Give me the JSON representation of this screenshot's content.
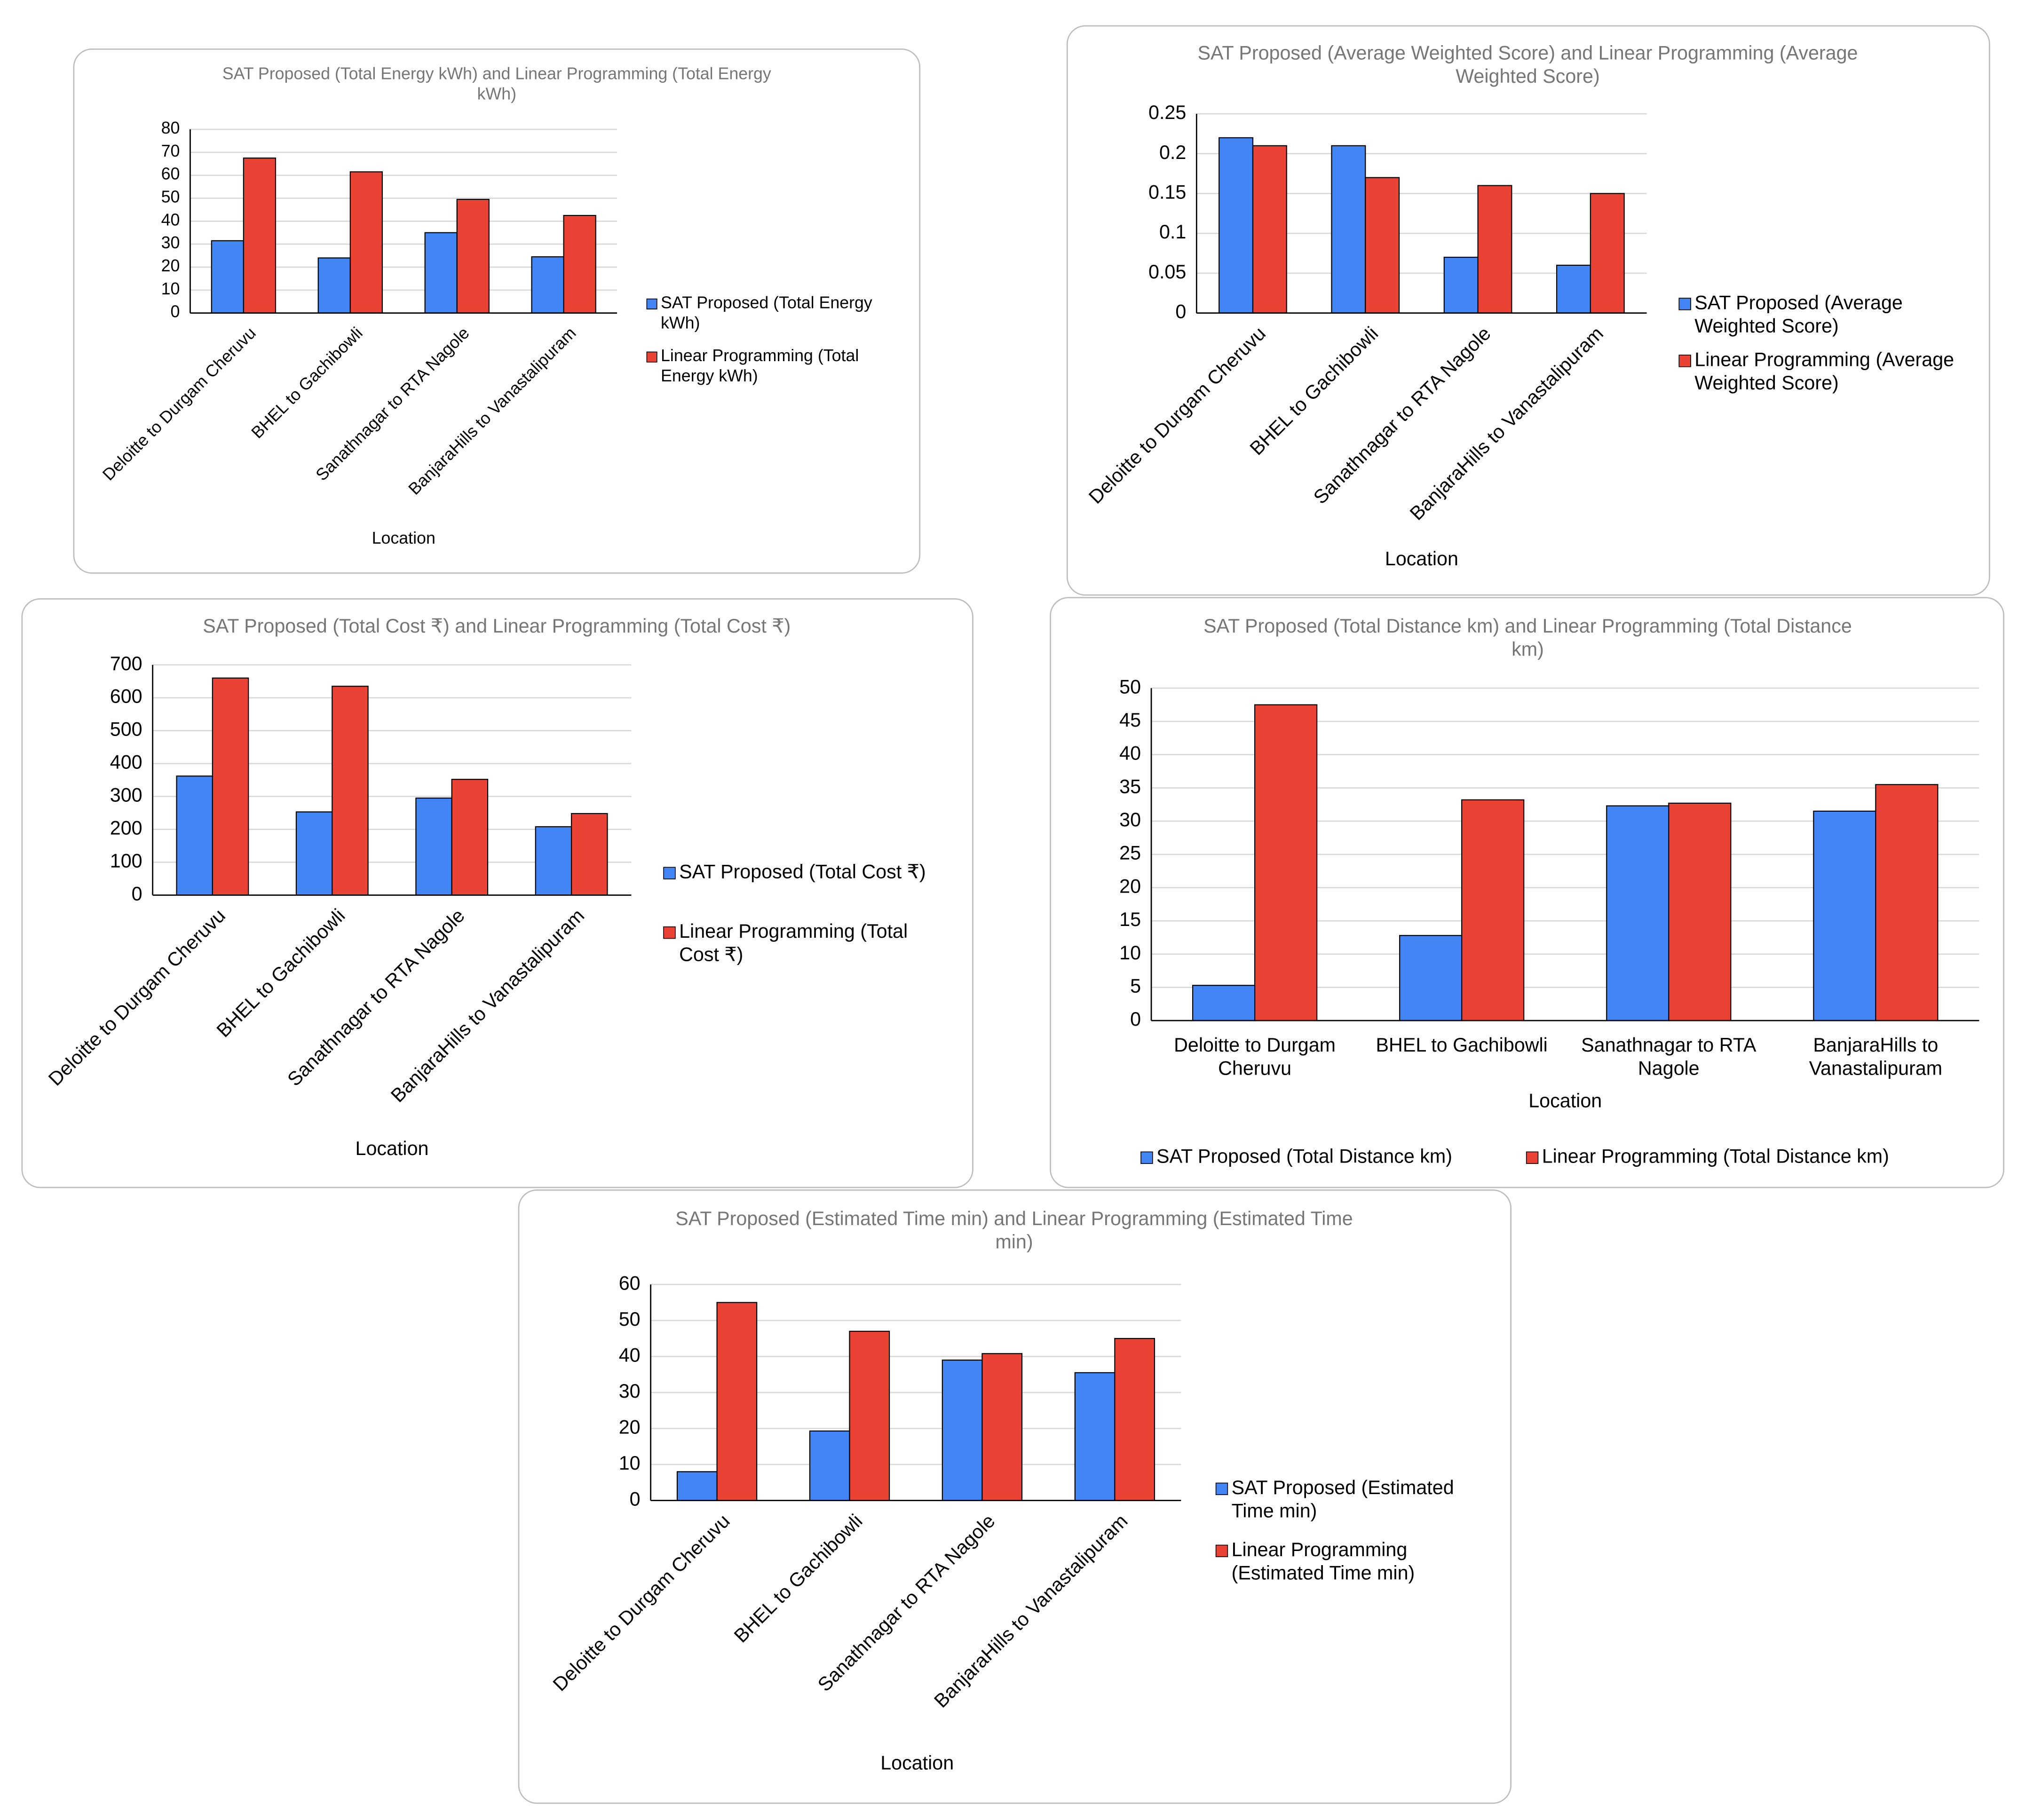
{
  "chart_data": [
    {
      "type": "bar",
      "title": "SAT Proposed (Total Energy kWh) and Linear Programming (Total Energy kWh)",
      "x_label": "Location",
      "categories": [
        "Deloitte to Durgam Cheruvu",
        "BHEL to Gachibowli",
        "Sanathnagar to RTA Nagole",
        "BanjaraHills to Vanastalipuram"
      ],
      "series": [
        {
          "name": "SAT Proposed (Total Energy kWh)",
          "color": "#4285f4",
          "values": [
            31.5,
            24,
            35,
            24.5
          ]
        },
        {
          "name": "Linear Programming (Total Energy kWh)",
          "color": "#ea4335",
          "values": [
            67.5,
            61.5,
            49.5,
            42.5
          ]
        }
      ],
      "ylim": [
        0,
        80
      ],
      "yticks": [
        0,
        10,
        20,
        30,
        40,
        50,
        60,
        70,
        80
      ],
      "grid": true,
      "legend": "right"
    },
    {
      "type": "bar",
      "title": "SAT Proposed (Average Weighted Score) and Linear Programming (Average Weighted Score)",
      "x_label": "Location",
      "categories": [
        "Deloitte to Durgam Cheruvu",
        "BHEL to Gachibowli",
        "Sanathnagar to RTA Nagole",
        "BanjaraHills to Vanastalipuram"
      ],
      "series": [
        {
          "name": "SAT Proposed (Average Weighted Score)",
          "color": "#4285f4",
          "values": [
            0.22,
            0.21,
            0.07,
            0.06
          ]
        },
        {
          "name": "Linear Programming (Average Weighted Score)",
          "color": "#ea4335",
          "values": [
            0.21,
            0.17,
            0.16,
            0.15
          ]
        }
      ],
      "ylim": [
        0,
        0.25
      ],
      "yticks": [
        0,
        0.05,
        0.1,
        0.15,
        0.2,
        0.25
      ],
      "grid": true,
      "legend": "right"
    },
    {
      "type": "bar",
      "title": "SAT Proposed (Total Cost ₹) and Linear Programming (Total Cost ₹)",
      "x_label": "Location",
      "categories": [
        "Deloitte to Durgam Cheruvu",
        "BHEL to Gachibowli",
        "Sanathnagar to RTA Nagole",
        "BanjaraHills to Vanastalipuram"
      ],
      "series": [
        {
          "name": "SAT Proposed (Total Cost ₹)",
          "color": "#4285f4",
          "values": [
            362,
            253,
            295,
            208
          ]
        },
        {
          "name": "Linear Programming (Total Cost ₹)",
          "color": "#ea4335",
          "values": [
            660,
            635,
            352,
            248
          ]
        }
      ],
      "ylim": [
        0,
        700
      ],
      "yticks": [
        0,
        100,
        200,
        300,
        400,
        500,
        600,
        700
      ],
      "grid": true,
      "legend": "right"
    },
    {
      "type": "bar",
      "title": "SAT Proposed (Total Distance km) and Linear Programming (Total Distance km)",
      "x_label": "Location",
      "categories": [
        "Deloitte to Durgam Cheruvu",
        "BHEL to Gachibowli",
        "Sanathnagar to RTA Nagole",
        "BanjaraHills to Vanastalipuram"
      ],
      "series": [
        {
          "name": "SAT Proposed (Total Distance km)",
          "color": "#4285f4",
          "values": [
            5.3,
            12.8,
            32.3,
            31.5
          ]
        },
        {
          "name": "Linear Programming (Total Distance km)",
          "color": "#ea4335",
          "values": [
            47.5,
            33.2,
            32.7,
            35.5
          ]
        }
      ],
      "ylim": [
        0,
        50
      ],
      "yticks": [
        0,
        5,
        10,
        15,
        20,
        25,
        30,
        35,
        40,
        45,
        50
      ],
      "grid": true,
      "legend": "bottom"
    },
    {
      "type": "bar",
      "title": "SAT Proposed (Estimated Time min) and Linear Programming (Estimated Time min)",
      "x_label": "Location",
      "categories": [
        "Deloitte to Durgam Cheruvu",
        "BHEL to Gachibowli",
        "Sanathnagar to RTA Nagole",
        "BanjaraHills to Vanastalipuram"
      ],
      "series": [
        {
          "name": "SAT Proposed (Estimated Time min)",
          "color": "#4285f4",
          "values": [
            8,
            19.3,
            39,
            35.5
          ]
        },
        {
          "name": "Linear Programming (Estimated Time min)",
          "color": "#ea4335",
          "values": [
            55,
            47,
            40.8,
            45
          ]
        }
      ],
      "ylim": [
        0,
        60
      ],
      "yticks": [
        0,
        10,
        20,
        30,
        40,
        50,
        60
      ],
      "grid": true,
      "legend": "right"
    }
  ]
}
